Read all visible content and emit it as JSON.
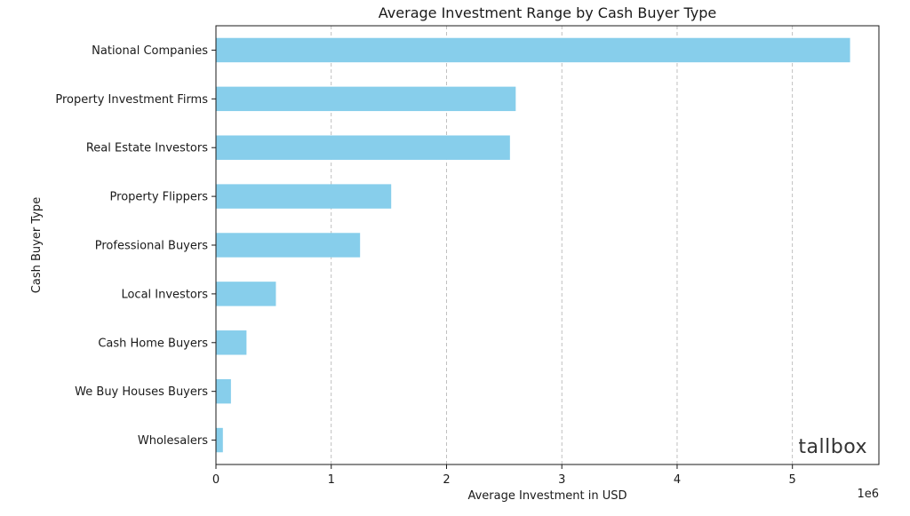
{
  "chart_data": {
    "type": "bar",
    "orientation": "horizontal",
    "title": "Average Investment Range by Cash Buyer Type",
    "xlabel": "Average Investment in USD",
    "ylabel": "Cash Buyer Type",
    "x_offset_label": "1e6",
    "xlim": [
      0,
      5750000
    ],
    "xticks": [
      0,
      1000000,
      2000000,
      3000000,
      4000000,
      5000000
    ],
    "xtick_labels": [
      "0",
      "1",
      "2",
      "3",
      "4",
      "5"
    ],
    "grid": "x-dashed",
    "bar_color": "#87CEEB",
    "categories": [
      "National Companies",
      "Property Investment Firms",
      "Real Estate Investors",
      "Property Flippers",
      "Professional Buyers",
      "Local Investors",
      "Cash Home Buyers",
      "We Buy Houses Buyers",
      "Wholesalers"
    ],
    "values": [
      5500000,
      2600000,
      2550000,
      1520000,
      1250000,
      520000,
      265000,
      130000,
      60000
    ]
  },
  "watermark": {
    "text": "tallbox"
  }
}
